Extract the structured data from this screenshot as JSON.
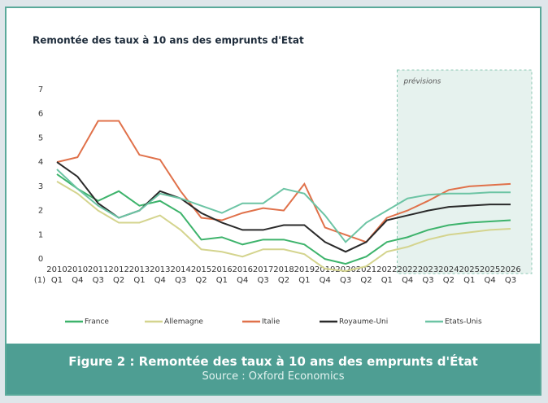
{
  "chart_data": {
    "type": "line",
    "title": "Remontée des taux à 10 ans des emprunts d'Etat",
    "forecast_label": "prévisions",
    "x_note": "(1)",
    "categories": [
      [
        "2010",
        "Q1"
      ],
      [
        "2010",
        "Q4"
      ],
      [
        "2011",
        "Q3"
      ],
      [
        "2012",
        "Q2"
      ],
      [
        "2013",
        "Q1"
      ],
      [
        "2013",
        "Q4"
      ],
      [
        "2014",
        "Q3"
      ],
      [
        "2015",
        "Q2"
      ],
      [
        "2016",
        "Q1"
      ],
      [
        "2016",
        "Q4"
      ],
      [
        "2017",
        "Q3"
      ],
      [
        "2018",
        "Q2"
      ],
      [
        "2019",
        "Q1"
      ],
      [
        "2019",
        "Q4"
      ],
      [
        "2020",
        "Q3"
      ],
      [
        "2021",
        "Q2"
      ],
      [
        "2022",
        "Q1"
      ],
      [
        "2022",
        "Q4"
      ],
      [
        "2023",
        "Q3"
      ],
      [
        "2024",
        "Q2"
      ],
      [
        "2025",
        "Q1"
      ],
      [
        "2025",
        "Q4"
      ],
      [
        "2026",
        "Q3"
      ]
    ],
    "series": [
      {
        "name": "France",
        "color": "#3db36b",
        "values": [
          3.5,
          2.9,
          2.4,
          2.8,
          2.2,
          2.4,
          1.9,
          0.8,
          0.9,
          0.6,
          0.8,
          0.8,
          0.6,
          0.0,
          -0.2,
          0.1,
          0.7,
          0.9,
          1.2,
          1.4,
          1.5,
          1.55,
          1.6
        ]
      },
      {
        "name": "Allemagne",
        "color": "#d4d48e",
        "values": [
          3.2,
          2.7,
          2.0,
          1.5,
          1.5,
          1.8,
          1.2,
          0.4,
          0.3,
          0.1,
          0.4,
          0.4,
          0.2,
          -0.4,
          -0.5,
          -0.3,
          0.3,
          0.5,
          0.8,
          1.0,
          1.1,
          1.2,
          1.25
        ]
      },
      {
        "name": "Italie",
        "color": "#e0714a",
        "values": [
          4.0,
          4.2,
          5.7,
          5.7,
          4.3,
          4.1,
          2.8,
          1.7,
          1.6,
          1.9,
          2.1,
          2.0,
          3.1,
          1.3,
          1.0,
          0.7,
          1.7,
          2.0,
          2.4,
          2.85,
          3.0,
          3.05,
          3.1
        ]
      },
      {
        "name": "Royaume-Uni",
        "color": "#2a2a2a",
        "values": [
          4.0,
          3.4,
          2.3,
          1.7,
          2.0,
          2.8,
          2.5,
          1.9,
          1.5,
          1.2,
          1.2,
          1.4,
          1.4,
          0.7,
          0.3,
          0.7,
          1.6,
          1.8,
          2.0,
          2.15,
          2.2,
          2.25,
          2.25
        ]
      },
      {
        "name": "Etats-Unis",
        "color": "#6cc4a4",
        "values": [
          3.7,
          2.9,
          2.2,
          1.7,
          2.0,
          2.7,
          2.5,
          2.2,
          1.9,
          2.3,
          2.3,
          2.9,
          2.7,
          1.8,
          0.7,
          1.5,
          2.0,
          2.5,
          2.65,
          2.7,
          2.7,
          2.75,
          2.75
        ]
      }
    ],
    "ylim": [
      -0.6,
      7.8
    ],
    "yticks": [
      0,
      1,
      2,
      3,
      4,
      5,
      6,
      7
    ],
    "grid": false
  },
  "caption": {
    "title": "Figure 2 : Remontée des taux à 10 ans des emprunts d'État",
    "source": "Source : Oxford Economics"
  }
}
